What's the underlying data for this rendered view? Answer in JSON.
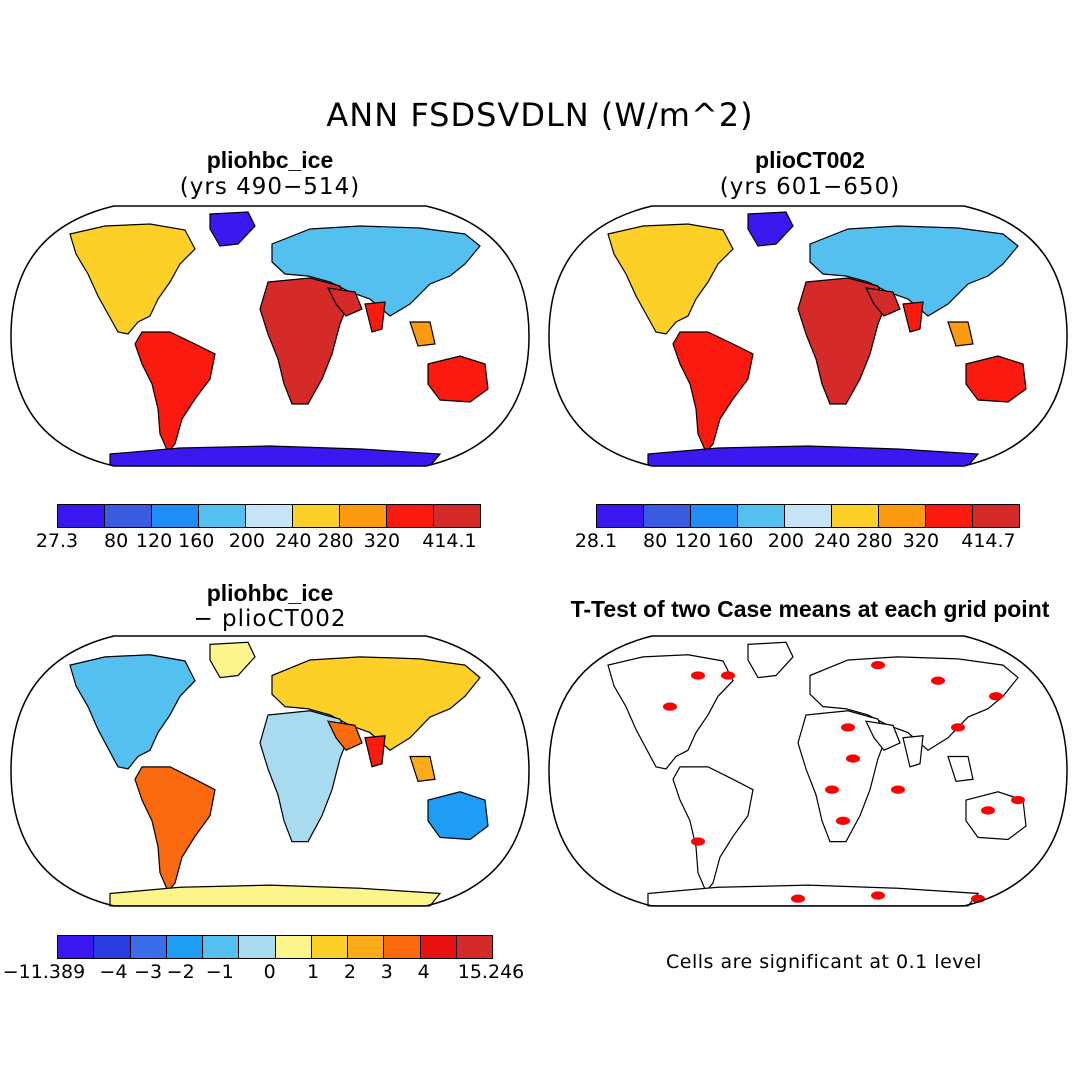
{
  "title": "ANN FSDSVDLN (W/m^2)",
  "panels": {
    "top_left": {
      "title": "pliohbc_ice",
      "subtitle": "(yrs 490−514)"
    },
    "top_right": {
      "title": "plioCT002",
      "subtitle": "(yrs 601−650)"
    },
    "bottom_left": {
      "title": "pliohbc_ice",
      "subtitle": "− plioCT002"
    },
    "bottom_right": {
      "title": "T-Test of two Case means at each grid point",
      "note": "Cells are significant at 0.1 level"
    }
  },
  "colorbar1": {
    "colors": [
      "#3b17f0",
      "#3a5be0",
      "#1f8df5",
      "#54c0f0",
      "#c6e4f6",
      "#fcd027",
      "#fc9a10",
      "#fb1a0f",
      "#d42a2a"
    ],
    "labels": [
      "27.3",
      "80",
      "120",
      "160",
      "200",
      "240",
      "280",
      "320",
      "414.1"
    ]
  },
  "colorbar2": {
    "colors": [
      "#3b17f0",
      "#3a5be0",
      "#1f8df5",
      "#54c0f0",
      "#c6e4f6",
      "#fcd027",
      "#fc9a10",
      "#fb1a0f",
      "#d42a2a"
    ],
    "labels": [
      "28.1",
      "80",
      "120",
      "160",
      "200",
      "240",
      "280",
      "320",
      "414.7"
    ]
  },
  "colorbar3": {
    "colors": [
      "#3b17f0",
      "#2a3ce0",
      "#3a6ee8",
      "#1f9df5",
      "#54c0f0",
      "#a8daf0",
      "#fcf58c",
      "#fcd027",
      "#fcaa1a",
      "#fc6a0f",
      "#e8110f",
      "#d42a2a"
    ],
    "labels": [
      "−11.389",
      "−4",
      "−3",
      "−2",
      "−1",
      "0",
      "1",
      "2",
      "3",
      "4",
      "15.246"
    ]
  },
  "legend_colors": {
    "significant": "#ff0000",
    "coast": "#000000"
  }
}
